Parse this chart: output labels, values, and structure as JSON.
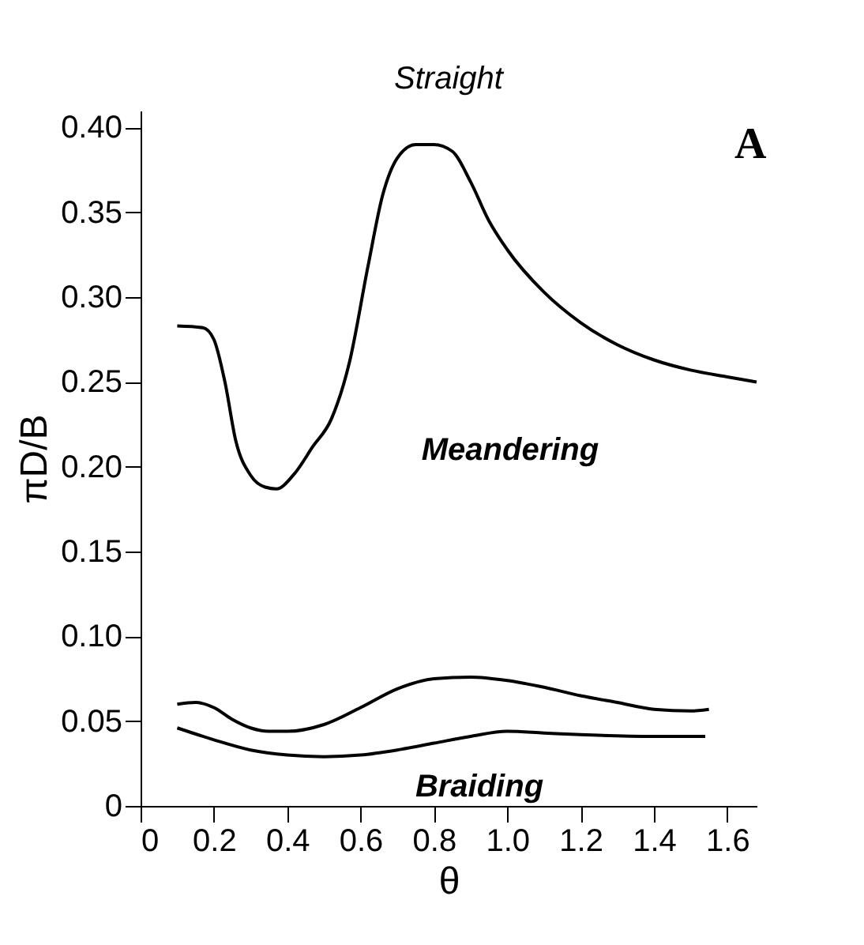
{
  "chart_data": {
    "type": "line",
    "xlabel": "θ",
    "ylabel": "πD/B",
    "xlim": [
      0,
      1.68
    ],
    "ylim": [
      0,
      0.41
    ],
    "xticks": [
      0,
      0.2,
      0.4,
      0.6,
      0.8,
      {
        "value": 1,
        "label": "1.0"
      },
      1.2,
      1.4,
      1.6
    ],
    "yticks": [
      0,
      0.05,
      {
        "value": 0.1,
        "label": "0.10"
      },
      0.15,
      {
        "value": 0.2,
        "label": "0.20"
      },
      0.25,
      {
        "value": 0.3,
        "label": "0.30"
      },
      0.35,
      {
        "value": 0.4,
        "label": "0.40"
      }
    ],
    "grid": false,
    "marker": "none",
    "line_style": "solid",
    "annotations": [
      "Straight",
      "Meandering",
      "Braiding",
      "A"
    ],
    "series": [
      {
        "color": "#000000",
        "x": [
          0.1,
          0.17,
          0.2,
          0.23,
          0.26,
          0.3,
          0.34,
          0.37,
          0.42,
          0.47,
          0.52,
          0.57,
          0.62,
          0.66,
          0.7,
          0.75,
          0.8,
          0.85,
          0.9,
          0.95,
          1.0,
          1.1,
          1.2,
          1.3,
          1.4,
          1.5,
          1.6,
          1.68
        ],
        "values": [
          0.283,
          0.282,
          0.275,
          0.25,
          0.215,
          0.195,
          0.188,
          0.187,
          0.196,
          0.212,
          0.228,
          0.262,
          0.318,
          0.36,
          0.382,
          0.39,
          0.39,
          0.386,
          0.368,
          0.345,
          0.328,
          0.303,
          0.285,
          0.272,
          0.263,
          0.257,
          0.253,
          0.25
        ]
      },
      {
        "color": "#000000",
        "x": [
          0.1,
          0.15,
          0.2,
          0.25,
          0.3,
          0.35,
          0.4,
          0.5,
          0.6,
          0.7,
          0.8,
          0.9,
          1.0,
          1.1,
          1.2,
          1.3,
          1.4,
          1.5,
          1.55
        ],
        "values": [
          0.06,
          0.061,
          0.058,
          0.051,
          0.046,
          0.044,
          0.044,
          0.048,
          0.058,
          0.069,
          0.075,
          0.076,
          0.074,
          0.07,
          0.065,
          0.061,
          0.057,
          0.056,
          0.057
        ]
      },
      {
        "color": "#000000",
        "x": [
          0.1,
          0.2,
          0.3,
          0.4,
          0.5,
          0.6,
          0.7,
          0.8,
          0.9,
          1.0,
          1.1,
          1.2,
          1.4,
          1.54
        ],
        "values": [
          0.046,
          0.039,
          0.033,
          0.03,
          0.029,
          0.03,
          0.033,
          0.037,
          0.041,
          0.044,
          0.043,
          0.042,
          0.041,
          0.041
        ]
      }
    ]
  }
}
